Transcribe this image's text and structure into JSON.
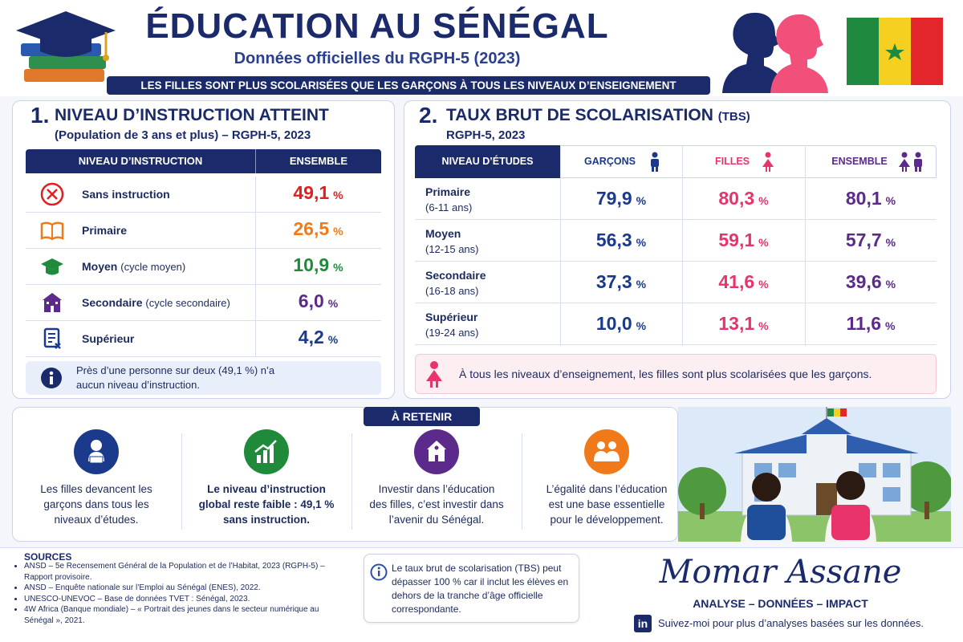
{
  "header": {
    "title": "ÉDUCATION AU SÉNÉGAL",
    "subtitle": "Données officielles du RGPH-5 (2023)",
    "banner": "LES FILLES SONT PLUS SCOLARISÉES QUE LES GARÇONS À TOUS LES NIVEAUX D’ENSEIGNEMENT"
  },
  "section1": {
    "number": "1.",
    "title": "NIVEAU D’INSTRUCTION ATTEINT",
    "subtitle": "(Population de 3 ans et plus) – RGPH-5, 2023",
    "headers": [
      "NIVEAU D’INSTRUCTION",
      "ENSEMBLE"
    ],
    "unit": "%",
    "rows": [
      {
        "label": "Sans instruction",
        "value": "49,1"
      },
      {
        "label": "Primaire",
        "value": "26,5"
      },
      {
        "label": "Moyen",
        "detail": "(cycle moyen)",
        "value": "10,9"
      },
      {
        "label": "Secondaire",
        "detail": "(cycle secondaire)",
        "value": "6,0"
      },
      {
        "label": "Supérieur",
        "value": "4,2"
      }
    ],
    "note": "Près d’une personne sur deux (49,1 %) n’a aucun niveau d’instruction."
  },
  "section2": {
    "number": "2.",
    "title": "TAUX BRUT DE SCOLARISATION",
    "title_suffix": "(TBS)",
    "subtitle": "RGPH-5, 2023",
    "headers": [
      "NIVEAU D’ÉTUDES",
      "GARÇONS",
      "FILLES",
      "ENSEMBLE"
    ],
    "unit": "%",
    "rows": [
      {
        "level": "Primaire",
        "ages": "(6-11 ans)",
        "values": [
          "79,9",
          "80,3",
          "80,1"
        ]
      },
      {
        "level": "Moyen",
        "ages": "(12-15 ans)",
        "values": [
          "56,3",
          "59,1",
          "57,7"
        ]
      },
      {
        "level": "Secondaire",
        "ages": "(16-18 ans)",
        "values": [
          "37,3",
          "41,6",
          "39,6"
        ]
      },
      {
        "level": "Supérieur",
        "ages": "(19-24 ans)",
        "values": [
          "10,0",
          "13,1",
          "11,6"
        ]
      }
    ],
    "note": "À tous les niveaux d’enseignement, les filles sont plus scolarisées que les garçons."
  },
  "retenir": {
    "title": "À RETENIR",
    "items": [
      "Les filles devancent les garçons dans tous les niveaux d’études.",
      "Le niveau d’instruction global reste faible : 49,1 % sans instruction.",
      "Investir dans l’éducation des filles, c’est investir dans l’avenir du Sénégal.",
      "L’égalité dans l’éducation est une base essentielle pour le développement."
    ]
  },
  "sources": {
    "title": "SOURCES",
    "items": [
      "ANSD – 5e Recensement Général de la Population et de l’Habitat, 2023 (RGPH-5) – Rapport provisoire.",
      "ANSD – Enquête nationale sur l’Emploi au Sénégal (ENES), 2022.",
      "UNESCO-UNEVOC – Base de données TVET : Sénégal, 2023.",
      "4W Africa (Banque mondiale) – « Portrait des jeunes dans le secteur numérique au Sénégal », 2021."
    ]
  },
  "tbs_note": "Le taux brut de scolarisation (TBS) peut dépasser 100 % car il inclut les élèves en dehors de la tranche d’âge officielle correspondante.",
  "author": {
    "name": "Momar Assane",
    "tagline": "ANALYSE – DONNÉES – IMPACT",
    "network": "in",
    "cta": "Suivez-moi pour plus d’analyses basées sur les données."
  }
}
